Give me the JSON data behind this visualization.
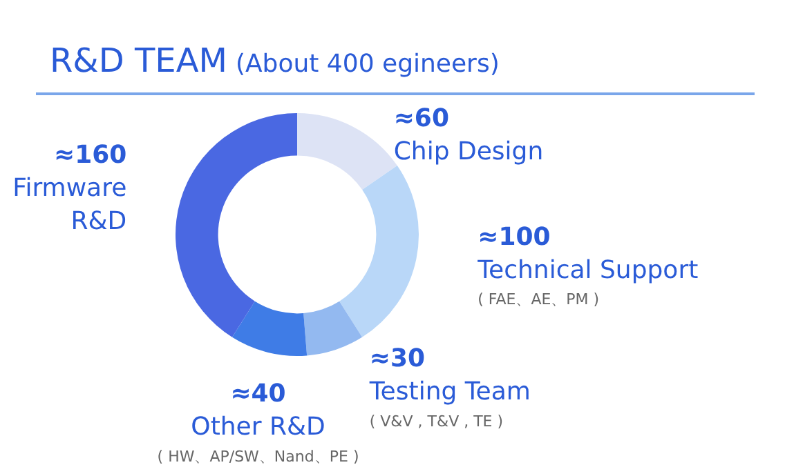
{
  "chart_data": {
    "type": "donut",
    "title": "R&D TEAM",
    "subtitle": "(About 400 egineers)",
    "categories": [
      "Chip Design",
      "Technical Support",
      "Testing Team",
      "Other R&D",
      "Firmware R&D"
    ],
    "values": [
      60,
      100,
      30,
      40,
      160
    ],
    "value_labels": [
      "≈60",
      "≈100",
      "≈30",
      "≈40",
      "≈160"
    ],
    "colors": [
      "#dde3f5",
      "#b9d7f8",
      "#93b9f0",
      "#3f7ce6",
      "#4a68e2"
    ],
    "annotations": [
      {
        "text": "( FAE、AE、PM )",
        "x": "Technical Support"
      },
      {
        "text": "( V&V , T&V , TE )",
        "x": "Testing Team"
      },
      {
        "text": "( HW、AP/SW、Nand、PE )",
        "x": "Other R&D"
      }
    ],
    "legend": false
  }
}
